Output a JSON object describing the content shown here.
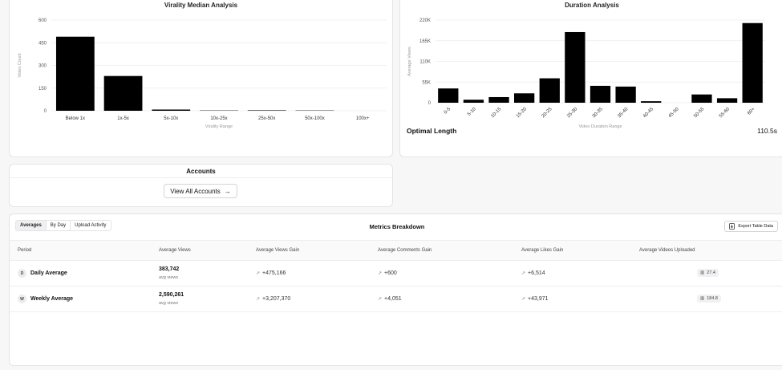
{
  "virality_chart": {
    "title": "Virality Median Analysis",
    "chart_data": {
      "type": "bar",
      "title": "Virality Median Analysis",
      "xlabel": "Virality Range",
      "ylabel": "Video Count",
      "ylim": [
        0,
        600
      ],
      "yticks": [
        "0",
        "150",
        "300",
        "450",
        "600"
      ],
      "categories": [
        "Below 1x",
        "1x-5x",
        "5x-10x",
        "10x-25x",
        "25x-50x",
        "50x-100x",
        "100x+"
      ],
      "values": [
        490,
        230,
        8,
        2,
        3,
        2,
        0
      ]
    }
  },
  "duration_chart": {
    "title": "Duration Analysis",
    "chart_data": {
      "type": "bar",
      "title": "Duration Analysis",
      "xlabel": "Video Duration Range",
      "ylabel": "Average Views",
      "ylim": [
        0,
        220000
      ],
      "yticks": [
        "0",
        "55K",
        "110K",
        "165K",
        "220K"
      ],
      "categories": [
        "0-5",
        "5-10",
        "10-15",
        "15-20",
        "20-25",
        "25-30",
        "30-35",
        "35-40",
        "40-45",
        "45-50",
        "50-55",
        "55-60",
        "60+"
      ],
      "values": [
        38000,
        8000,
        15000,
        25000,
        65000,
        188000,
        45000,
        43000,
        4000,
        0,
        22000,
        12000,
        212000
      ]
    },
    "optimal_label": "Optimal Length",
    "optimal_value": "110.5s"
  },
  "accounts": {
    "title": "Accounts",
    "button_label": "View All Accounts",
    "button_arrow": "→"
  },
  "metrics": {
    "tabs": [
      "Averages",
      "By Day",
      "Upload Activity"
    ],
    "title": "Metrics Breakdown",
    "export_label": "Export Table Data",
    "columns": [
      "Period",
      "Average Views",
      "Average Views Gain",
      "Average Comments Gain",
      "Average Likes Gain",
      "Average Videos Uploaded"
    ],
    "rows": [
      {
        "badge": "D",
        "period": "Daily Average",
        "views": "383,742",
        "views_sub": "avg views",
        "views_gain": "+475,166",
        "comments_gain": "+600",
        "likes_gain": "+6,514",
        "uploaded": "27.4"
      },
      {
        "badge": "W",
        "period": "Weekly Average",
        "views": "2,590,261",
        "views_sub": "avg views",
        "views_gain": "+3,207,370",
        "comments_gain": "+4,051",
        "likes_gain": "+43,971",
        "uploaded": "184.8"
      }
    ]
  }
}
